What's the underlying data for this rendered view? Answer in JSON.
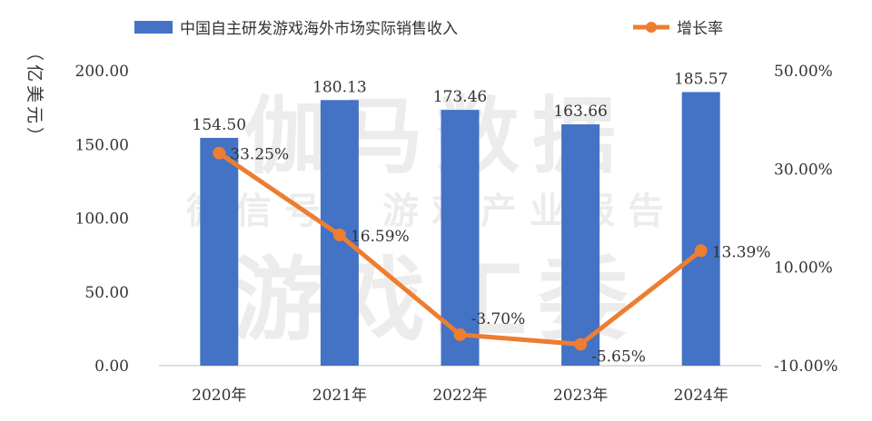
{
  "watermark": {
    "line1": "伽马数据",
    "line2": "微信号：游戏产业报告",
    "line3": "游戏工委"
  },
  "chart_data": {
    "type": "bar+line",
    "categories": [
      "2020年",
      "2021年",
      "2022年",
      "2023年",
      "2024年"
    ],
    "series": [
      {
        "name": "中国自主研发游戏海外市场实际销售收入",
        "type": "bar",
        "axis": "left",
        "color": "#4472C4",
        "values": [
          154.5,
          180.13,
          173.46,
          163.66,
          185.57
        ],
        "labels": [
          "154.50",
          "180.13",
          "173.46",
          "163.66",
          "185.57"
        ]
      },
      {
        "name": "增长率",
        "type": "line",
        "axis": "right",
        "color": "#ED7D31",
        "values": [
          33.25,
          16.59,
          -3.7,
          -5.65,
          13.39
        ],
        "labels": [
          "33.25%",
          "16.59%",
          "-3.70%",
          "-5.65%",
          "13.39%"
        ]
      }
    ],
    "ylabel": "（亿美元）",
    "ylim": [
      0,
      200
    ],
    "yticks": [
      "0.00",
      "50.00",
      "100.00",
      "150.00",
      "200.00"
    ],
    "y2lim": [
      -10,
      50
    ],
    "y2ticks": [
      "-10.00%",
      "10.00%",
      "30.00%",
      "50.00%"
    ],
    "grid": false,
    "legend": "top"
  }
}
